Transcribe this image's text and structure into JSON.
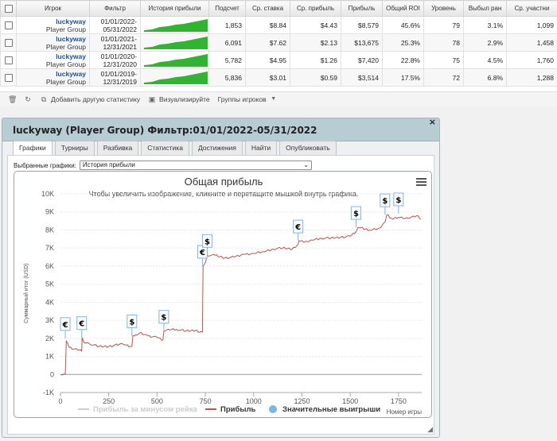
{
  "table": {
    "headers": [
      "Игрок",
      "Фильтр",
      "История прибыли",
      "Подсчет",
      "Ср. ставка",
      "Ср. прибыль",
      "Прибыль",
      "Общий ROI",
      "Уровень",
      "Выбыл ран",
      "Ср. участни"
    ],
    "rows": [
      {
        "player": "luckyway",
        "group": "Player Group",
        "filter_a": "01/01/2022-",
        "filter_b": "05/31/2022",
        "count": "1,853",
        "avg_stake": "$8.84",
        "avg_profit": "$4.43",
        "profit": "$8,579",
        "roi": "45.6%",
        "level": "79",
        "early_out": "3.1%",
        "avg_entrants": "1,099"
      },
      {
        "player": "luckyway",
        "group": "Player Group",
        "filter_a": "01/01/2021-",
        "filter_b": "12/31/2021",
        "count": "6,091",
        "avg_stake": "$7.62",
        "avg_profit": "$2.13",
        "profit": "$13,675",
        "roi": "25.3%",
        "level": "78",
        "early_out": "2.9%",
        "avg_entrants": "1,458"
      },
      {
        "player": "luckyway",
        "group": "Player Group",
        "filter_a": "01/01/2020-",
        "filter_b": "12/31/2020",
        "count": "5,782",
        "avg_stake": "$4.95",
        "avg_profit": "$1.26",
        "profit": "$7,420",
        "roi": "22.8%",
        "level": "75",
        "early_out": "4.5%",
        "avg_entrants": "1,760"
      },
      {
        "player": "luckyway",
        "group": "Player Group",
        "filter_a": "01/01/2019-",
        "filter_b": "12/31/2019",
        "count": "5,836",
        "avg_stake": "$3.01",
        "avg_profit": "$0.59",
        "profit": "$3,514",
        "roi": "17.5%",
        "level": "72",
        "early_out": "6.8%",
        "avg_entrants": "1,288"
      }
    ]
  },
  "toolbar": {
    "add_label": "Добавить другую статистику",
    "visualize_label": "Визуализируйте",
    "groups_label": "Группы игроков"
  },
  "panel": {
    "title": "luckyway (Player Group) Фильтр:01/01/2022-05/31/2022",
    "close_glyph": "×",
    "tabs": [
      "Графики",
      "Турниры",
      "Разбивка",
      "Статистика",
      "Достижения",
      "Найти",
      "Опубликовать"
    ],
    "active_tab": "Графики",
    "select_label": "Выбранные графики:",
    "select_value": "История прибыли"
  },
  "chart_data": {
    "type": "line",
    "title": "Общая прибыль",
    "subtitle": "Чтобы увеличить изображение, кликните и перетащите мышкой внутрь графика.",
    "ylabel": "Суммарный итог (USD)",
    "xlabel": "Номер игры",
    "ylim": [
      -1000,
      10000
    ],
    "xlim": [
      0,
      1870
    ],
    "yticks": [
      "-1K",
      "0",
      "1K",
      "2K",
      "3K",
      "4K",
      "5K",
      "6K",
      "7K",
      "8K",
      "9K",
      "10K"
    ],
    "xticks": [
      "0",
      "250",
      "500",
      "750",
      "1000",
      "1250",
      "1500",
      "1750"
    ],
    "grid": true,
    "legend_position": "bottom",
    "series": [
      {
        "name": "Прибыль",
        "color": "#b85450",
        "points": [
          [
            0,
            0
          ],
          [
            25,
            30
          ],
          [
            30,
            1850
          ],
          [
            45,
            1500
          ],
          [
            90,
            1350
          ],
          [
            110,
            1300
          ],
          [
            112,
            2050
          ],
          [
            120,
            1800
          ],
          [
            150,
            1700
          ],
          [
            200,
            1550
          ],
          [
            250,
            1550
          ],
          [
            320,
            1700
          ],
          [
            330,
            1650
          ],
          [
            370,
            1550
          ],
          [
            375,
            2150
          ],
          [
            390,
            2200
          ],
          [
            410,
            2300
          ],
          [
            450,
            2150
          ],
          [
            500,
            2050
          ],
          [
            530,
            1900
          ],
          [
            535,
            2400
          ],
          [
            560,
            2500
          ],
          [
            600,
            2500
          ],
          [
            650,
            2400
          ],
          [
            700,
            2450
          ],
          [
            720,
            2350
          ],
          [
            735,
            2350
          ],
          [
            738,
            6000
          ],
          [
            750,
            6200
          ],
          [
            760,
            6600
          ],
          [
            800,
            6600
          ],
          [
            850,
            6450
          ],
          [
            900,
            6500
          ],
          [
            950,
            6650
          ],
          [
            1000,
            6700
          ],
          [
            1050,
            6800
          ],
          [
            1100,
            6950
          ],
          [
            1150,
            7000
          ],
          [
            1200,
            6950
          ],
          [
            1230,
            7200
          ],
          [
            1235,
            7400
          ],
          [
            1280,
            7350
          ],
          [
            1300,
            7450
          ],
          [
            1350,
            7550
          ],
          [
            1400,
            7550
          ],
          [
            1450,
            7600
          ],
          [
            1500,
            7650
          ],
          [
            1530,
            7900
          ],
          [
            1540,
            8150
          ],
          [
            1600,
            8000
          ],
          [
            1650,
            8100
          ],
          [
            1680,
            8450
          ],
          [
            1690,
            8850
          ],
          [
            1720,
            8600
          ],
          [
            1750,
            8700
          ],
          [
            1800,
            8650
          ],
          [
            1850,
            8800
          ],
          [
            1865,
            8600
          ]
        ]
      },
      {
        "name": "Прибыль за минусом рейка",
        "color": "#cccccc",
        "points": []
      }
    ],
    "markers": [
      {
        "x": 25,
        "y": 2000,
        "symbol": "€"
      },
      {
        "x": 110,
        "y": 2050,
        "symbol": "€"
      },
      {
        "x": 370,
        "y": 2150,
        "symbol": "$"
      },
      {
        "x": 535,
        "y": 2400,
        "symbol": "$"
      },
      {
        "x": 735,
        "y": 6000,
        "symbol": "€"
      },
      {
        "x": 760,
        "y": 6600,
        "symbol": "$"
      },
      {
        "x": 1230,
        "y": 7400,
        "symbol": "€"
      },
      {
        "x": 1530,
        "y": 8150,
        "symbol": "$"
      },
      {
        "x": 1680,
        "y": 8850,
        "symbol": "$"
      },
      {
        "x": 1750,
        "y": 8900,
        "symbol": "$"
      }
    ],
    "legend": [
      {
        "label": "Прибыль за минусом рейка",
        "color": "#cccccc",
        "kind": "line"
      },
      {
        "label": "Прибыль",
        "color": "#b85450",
        "kind": "line"
      },
      {
        "label": "Значительные выигрыши",
        "color": "#7cb5ec",
        "kind": "dot"
      }
    ]
  }
}
